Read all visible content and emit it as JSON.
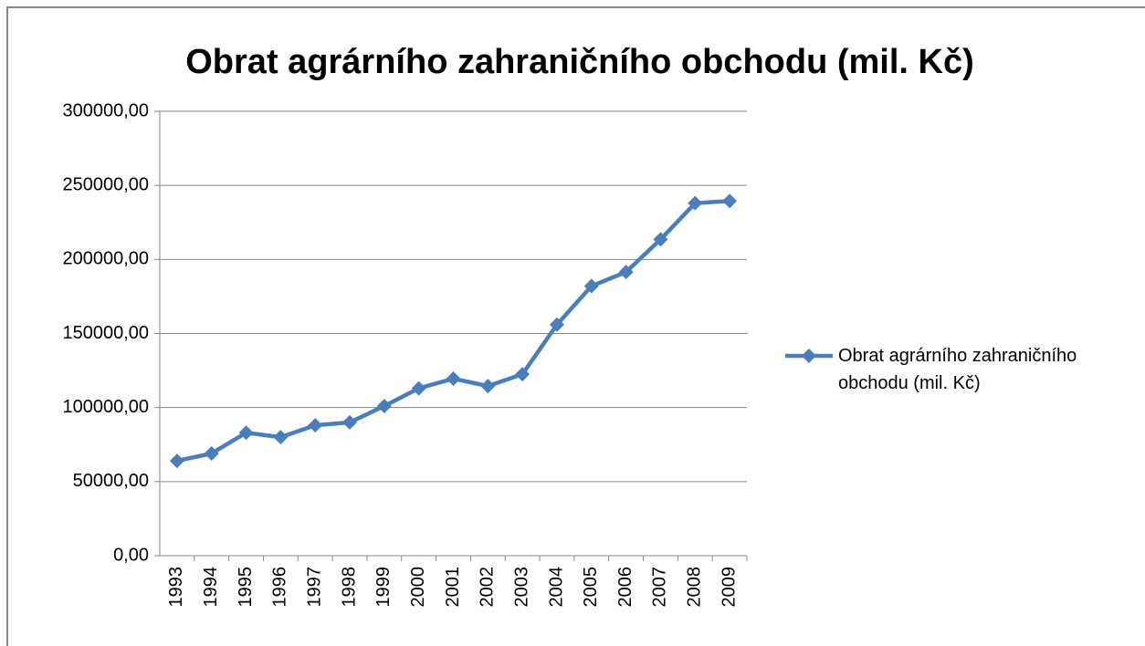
{
  "chart_data": {
    "type": "line",
    "title": "Obrat agrárního zahraničního obchodu (mil. Kč)",
    "categories": [
      "1993",
      "1994",
      "1995",
      "1996",
      "1997",
      "1998",
      "1999",
      "2000",
      "2001",
      "2002",
      "2003",
      "2004",
      "2005",
      "2006",
      "2007",
      "2008",
      "2009"
    ],
    "series": [
      {
        "name": "Obrat agrárního zahraničního obchodu (mil. Kč)",
        "color": "#4a7ebb",
        "values": [
          64000,
          69000,
          83000,
          80000,
          88000,
          90000,
          101000,
          113000,
          119500,
          114500,
          122500,
          156000,
          182000,
          191500,
          213500,
          238000,
          239500
        ]
      }
    ],
    "ylim": [
      0,
      300000
    ],
    "yticks": [
      {
        "value": 0,
        "label": "0,00"
      },
      {
        "value": 50000,
        "label": "50000,00"
      },
      {
        "value": 100000,
        "label": "100000,00"
      },
      {
        "value": 150000,
        "label": "150000,00"
      },
      {
        "value": 200000,
        "label": "200000,00"
      },
      {
        "value": 250000,
        "label": "250000,00"
      },
      {
        "value": 300000,
        "label": "300000,00"
      }
    ],
    "grid": true,
    "legend": "right"
  }
}
